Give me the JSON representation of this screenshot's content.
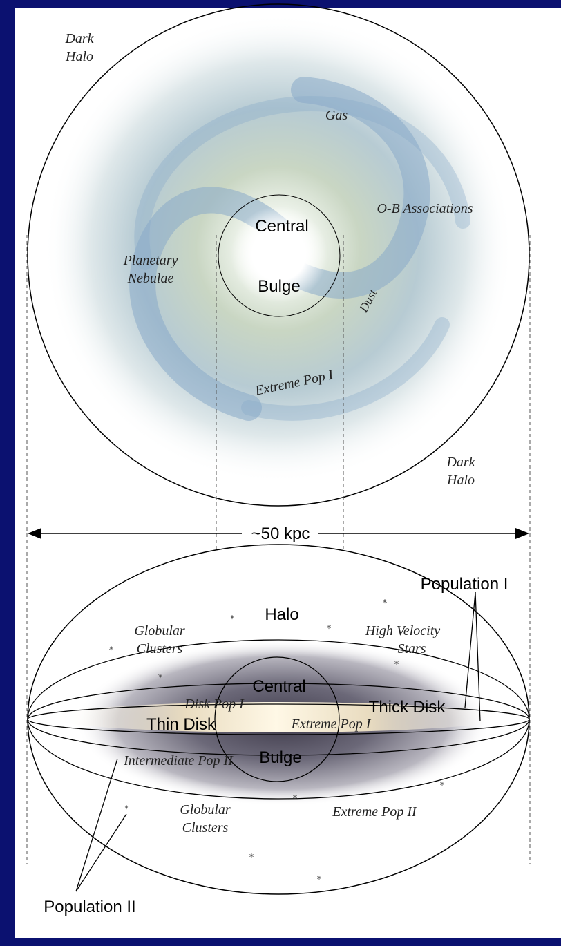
{
  "top_view": {
    "dark_halo_top_line1": "Dark",
    "dark_halo_top_line2": "Halo",
    "gas": "Gas",
    "ob_associations": "O-B Associations",
    "central": "Central",
    "bulge": "Bulge",
    "planetary_line1": "Planetary",
    "planetary_line2": "Nebulae",
    "dust": "Dust",
    "extreme_pop1": "Extreme Pop I",
    "dark_halo_bottom_line1": "Dark",
    "dark_halo_bottom_line2": "Halo"
  },
  "scale": {
    "label": "~50 kpc"
  },
  "side_view": {
    "population_1": "Population I",
    "halo": "Halo",
    "globular_top_line1": "Globular",
    "globular_top_line2": "Clusters",
    "high_velocity_line1": "High Velocity",
    "high_velocity_line2": "Stars",
    "central": "Central",
    "disk_pop1": "Disk Pop I",
    "thick_disk": "Thick Disk",
    "thin_disk": "Thin Disk",
    "extreme_pop1": "Extreme Pop I",
    "bulge": "Bulge",
    "intermediate_pop2": "Intermediate Pop II",
    "globular_bottom_line1": "Globular",
    "globular_bottom_line2": "Clusters",
    "extreme_pop2": "Extreme Pop II",
    "population_2": "Population II"
  },
  "colors": {
    "background": "#0b1170",
    "panel": "#ffffff",
    "galaxy_blue": "#8fb3d6",
    "galaxy_core": "#ffffff",
    "disk_grey": "#6b6878",
    "thin_disk_glow": "#f4e6c2"
  }
}
